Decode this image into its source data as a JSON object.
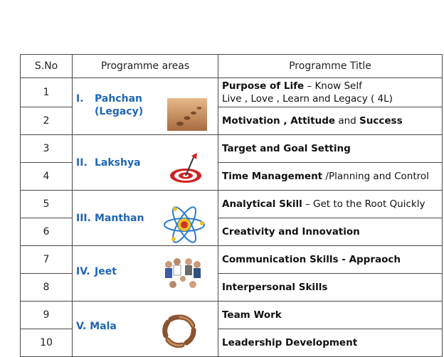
{
  "headers": {
    "sno": "S.No",
    "area": "Programme areas",
    "title": "Programme Title"
  },
  "colors": {
    "area_label": "#1f66b3",
    "border": "#4a4a4a"
  },
  "groups": [
    {
      "roman": "I.",
      "name": "Pahchan",
      "sub": "(Legacy)",
      "icon": "footprints-on-sand-photo"
    },
    {
      "roman": "II.",
      "name": "Lakshya",
      "icon": "target-dart-icon"
    },
    {
      "roman": "III.",
      "name": "Manthan",
      "icon": "atom-brain-icon"
    },
    {
      "roman": "IV.",
      "name": "Jeet",
      "icon": "team-hands-together-photo"
    },
    {
      "roman": "V.",
      "name": "Mala",
      "icon": "ring-of-hands-photo"
    }
  ],
  "rows": [
    {
      "sno": "1",
      "title_bold": "Purpose of Life",
      "title_rest": " – Know Self",
      "line2": "Live , Love , Learn and Legacy ( 4L)"
    },
    {
      "sno": "2",
      "t1": "Motivation , Attitude",
      "t2": " and ",
      "t3": "Success"
    },
    {
      "sno": "3",
      "title": "Target and Goal Setting"
    },
    {
      "sno": "4",
      "title_bold": "Time Management",
      "title_rest": " /Planning and Control"
    },
    {
      "sno": "5",
      "title_bold": "Analytical Skill",
      "title_rest": " – Get to the Root Quickly"
    },
    {
      "sno": "6",
      "title": "Creativity and Innovation"
    },
    {
      "sno": "7",
      "title": "Communication Skills - Appraoch"
    },
    {
      "sno": "8",
      "title": "Interpersonal Skills"
    },
    {
      "sno": "9",
      "title": "Team Work"
    },
    {
      "sno": "10",
      "title": "Leadership Development"
    }
  ]
}
